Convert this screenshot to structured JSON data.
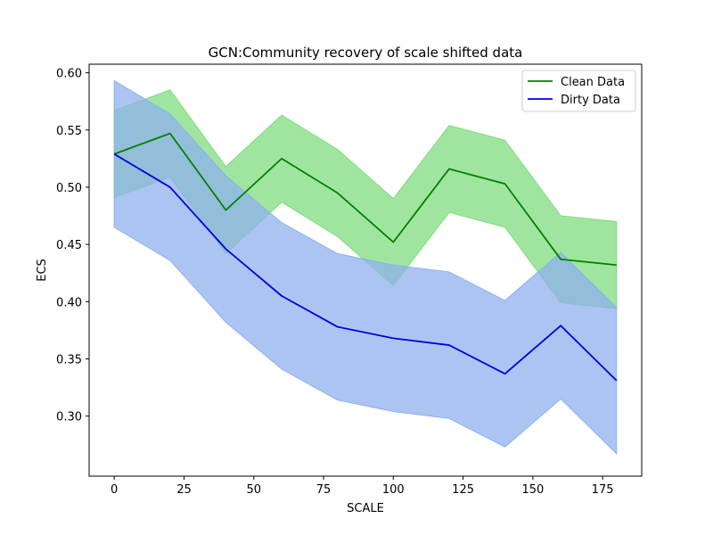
{
  "chart_data": {
    "type": "line",
    "title": "GCN:Community recovery of scale shifted data",
    "xlabel": "SCALE",
    "ylabel": "ECS",
    "xlim": [
      -9,
      189
    ],
    "ylim": [
      0.2475,
      0.6075
    ],
    "xticks": [
      0,
      25,
      50,
      75,
      100,
      125,
      150,
      175
    ],
    "yticks": [
      0.3,
      0.35,
      0.4,
      0.45,
      0.5,
      0.55,
      0.6
    ],
    "x": [
      0,
      20,
      40,
      60,
      80,
      100,
      120,
      140,
      160,
      180
    ],
    "series": [
      {
        "name": "Clean Data",
        "line_color": "#008000",
        "fill_color": "#7fdc7f",
        "values": [
          0.529,
          0.547,
          0.48,
          0.525,
          0.495,
          0.452,
          0.516,
          0.503,
          0.437,
          0.432
        ],
        "lower": [
          0.491,
          0.509,
          0.442,
          0.487,
          0.457,
          0.414,
          0.478,
          0.465,
          0.399,
          0.394
        ],
        "upper": [
          0.567,
          0.585,
          0.518,
          0.563,
          0.533,
          0.49,
          0.554,
          0.541,
          0.475,
          0.47
        ]
      },
      {
        "name": "Dirty Data",
        "line_color": "#0000dd",
        "fill_color": "#8fb0ee",
        "values": [
          0.529,
          0.5,
          0.446,
          0.405,
          0.378,
          0.368,
          0.362,
          0.337,
          0.379,
          0.331
        ],
        "lower": [
          0.465,
          0.436,
          0.382,
          0.341,
          0.314,
          0.304,
          0.298,
          0.273,
          0.315,
          0.267
        ],
        "upper": [
          0.593,
          0.564,
          0.51,
          0.469,
          0.442,
          0.432,
          0.426,
          0.401,
          0.443,
          0.395
        ]
      }
    ],
    "legend": {
      "placement": "top-right"
    },
    "grid": false
  }
}
